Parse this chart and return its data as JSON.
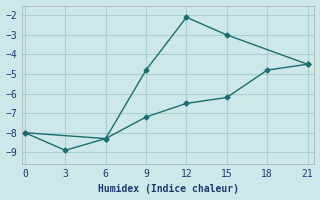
{
  "xlabel": "Humidex (Indice chaleur)",
  "background_color": "#cce8e8",
  "grid_color": "#aacfcf",
  "line_color": "#1a6e6e",
  "line1_x": [
    0,
    3,
    6,
    9,
    12,
    15,
    21
  ],
  "line1_y": [
    -8.0,
    -8.9,
    -8.3,
    -4.8,
    -2.1,
    -3.0,
    -4.5
  ],
  "line2_x": [
    0,
    6,
    9,
    12,
    15,
    18,
    21
  ],
  "line2_y": [
    -8.0,
    -8.3,
    -7.2,
    -6.5,
    -6.2,
    -4.8,
    -4.5
  ],
  "xlim": [
    -0.2,
    21.5
  ],
  "ylim": [
    -9.6,
    -1.5
  ],
  "xticks": [
    0,
    3,
    6,
    9,
    12,
    15,
    18,
    21
  ],
  "yticks": [
    -9,
    -8,
    -7,
    -6,
    -5,
    -4,
    -3,
    -2
  ],
  "marker": "D",
  "marker_size": 2.5,
  "line_width": 1.0
}
